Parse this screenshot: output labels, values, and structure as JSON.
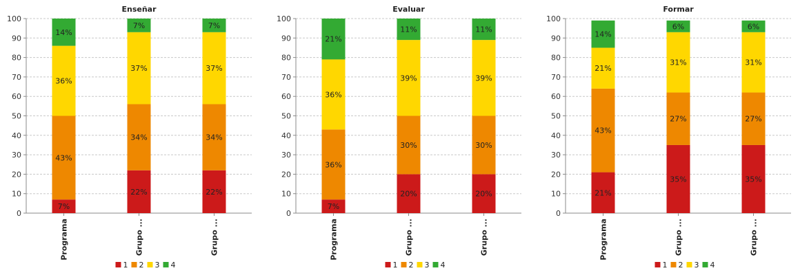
{
  "chart_data": [
    {
      "type": "bar",
      "stacked": true,
      "title": "Enseñar",
      "categories": [
        "Programa",
        "Grupo ...",
        "Grupo ..."
      ],
      "ylim": [
        0,
        100
      ],
      "yticks": [
        0,
        10,
        20,
        30,
        40,
        50,
        60,
        70,
        80,
        90,
        100
      ],
      "grid": true,
      "legend_position": "bottom",
      "series": [
        {
          "name": "1",
          "color": "#cc1a1a",
          "values": [
            7,
            22,
            22
          ]
        },
        {
          "name": "2",
          "color": "#ee8800",
          "values": [
            43,
            34,
            34
          ]
        },
        {
          "name": "3",
          "color": "#ffd700",
          "values": [
            36,
            37,
            37
          ]
        },
        {
          "name": "4",
          "color": "#33aa33",
          "values": [
            14,
            7,
            7
          ]
        }
      ]
    },
    {
      "type": "bar",
      "stacked": true,
      "title": "Evaluar",
      "categories": [
        "Programa",
        "Grupo ...",
        "Grupo ..."
      ],
      "ylim": [
        0,
        100
      ],
      "yticks": [
        0,
        10,
        20,
        30,
        40,
        50,
        60,
        70,
        80,
        90,
        100
      ],
      "grid": true,
      "legend_position": "bottom",
      "series": [
        {
          "name": "1",
          "color": "#cc1a1a",
          "values": [
            7,
            20,
            20
          ]
        },
        {
          "name": "2",
          "color": "#ee8800",
          "values": [
            36,
            30,
            30
          ]
        },
        {
          "name": "3",
          "color": "#ffd700",
          "values": [
            36,
            39,
            39
          ]
        },
        {
          "name": "4",
          "color": "#33aa33",
          "values": [
            21,
            11,
            11
          ]
        }
      ]
    },
    {
      "type": "bar",
      "stacked": true,
      "title": "Formar",
      "categories": [
        "Programa",
        "Grupo ...",
        "Grupo ..."
      ],
      "ylim": [
        0,
        100
      ],
      "yticks": [
        0,
        10,
        20,
        30,
        40,
        50,
        60,
        70,
        80,
        90,
        100
      ],
      "grid": true,
      "legend_position": "bottom",
      "series": [
        {
          "name": "1",
          "color": "#cc1a1a",
          "values": [
            21,
            35,
            35
          ]
        },
        {
          "name": "2",
          "color": "#ee8800",
          "values": [
            43,
            27,
            27
          ]
        },
        {
          "name": "3",
          "color": "#ffd700",
          "values": [
            21,
            31,
            31
          ]
        },
        {
          "name": "4",
          "color": "#33aa33",
          "values": [
            14,
            6,
            6
          ]
        }
      ]
    }
  ]
}
